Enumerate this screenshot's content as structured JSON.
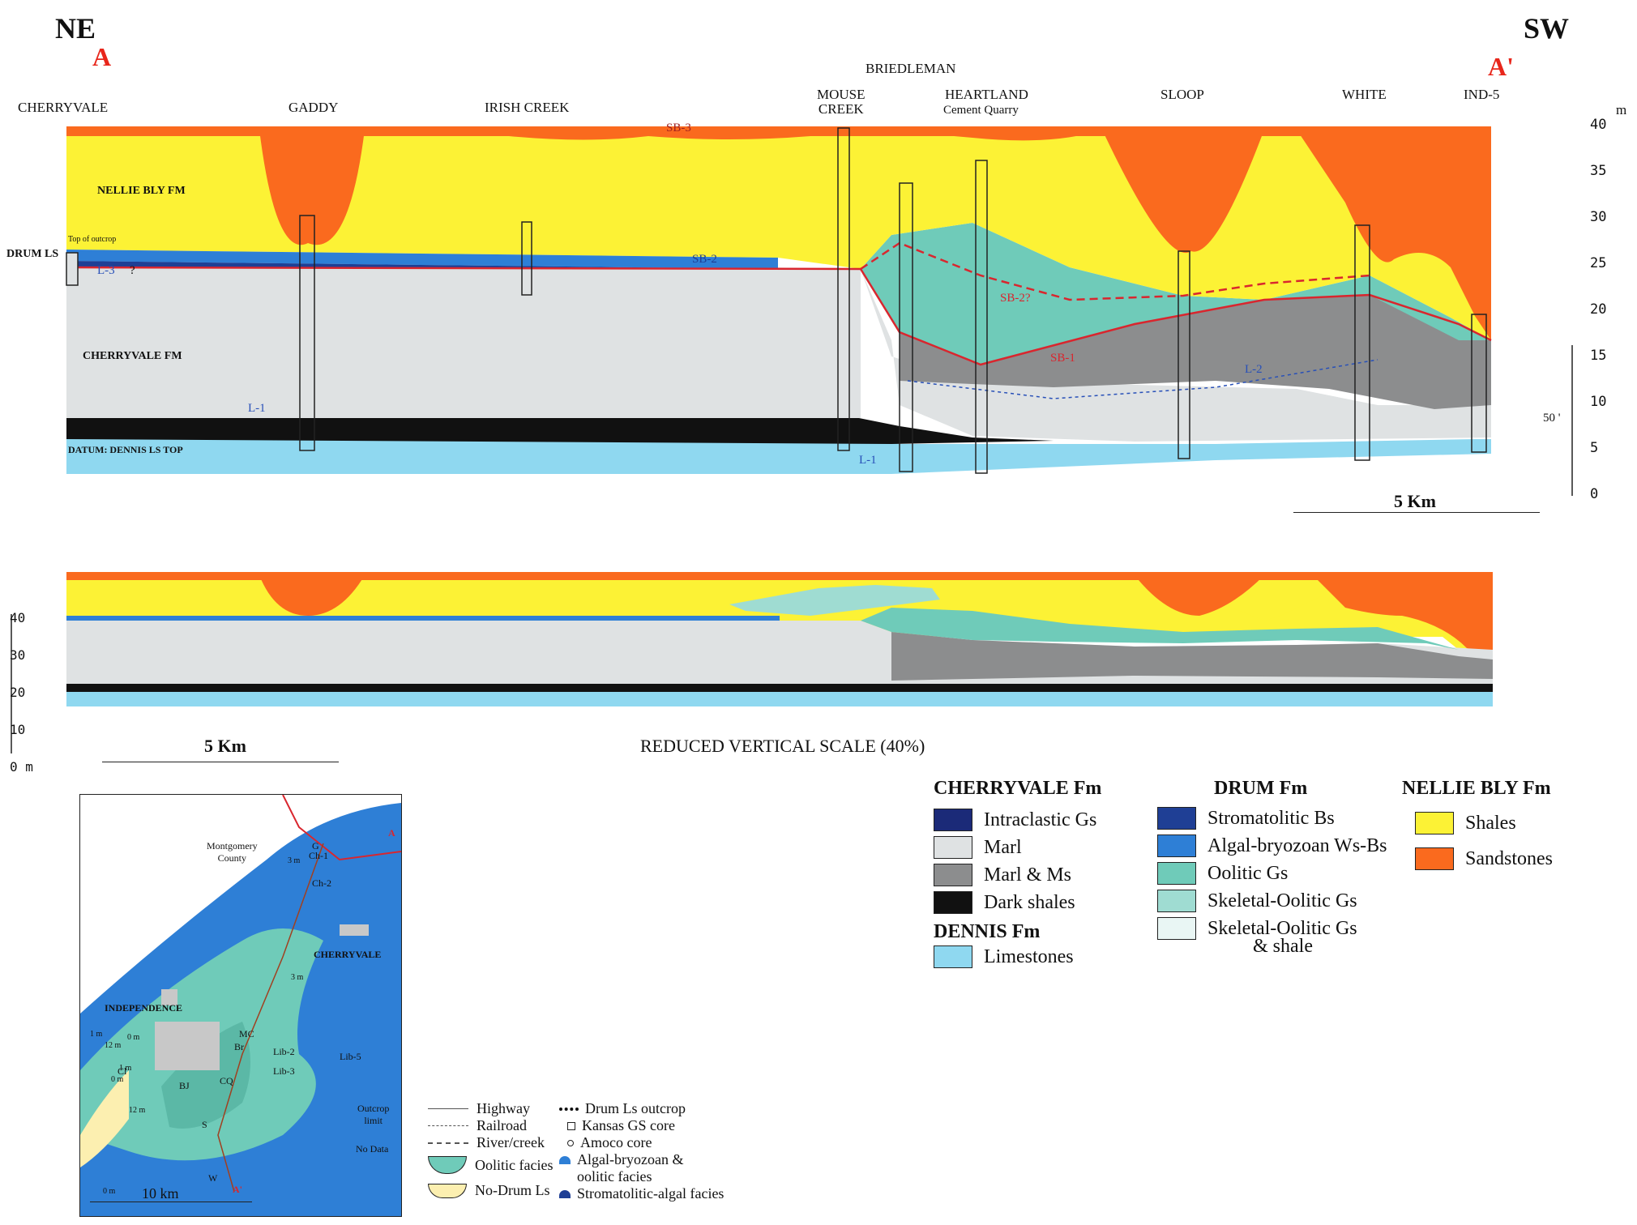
{
  "colors": {
    "sandstone": "#fa6a1e",
    "shale": "#fcf235",
    "marl": "#dfe2e3",
    "marl_ms": "#8c8d8e",
    "dark_shale": "#111111",
    "limestone": "#8fd8f0",
    "oolitic": "#6fcbb9",
    "skeletal_oolitic": "#9fdcd2",
    "skeletal_shale": "#e9f6f4",
    "algal": "#2e7fd6",
    "stromatolitic": "#1f3f95",
    "intraclastic": "#1b2a78",
    "sb_line": "#d9262e",
    "datum_line": "#2850b8"
  },
  "header": {
    "ne": "NE",
    "a": "A",
    "sw": "SW",
    "a_prime": "A'"
  },
  "wells": {
    "cherryvale": "CHERRYVALE",
    "gaddy": "GADDY",
    "irish_creek": "IRISH CREEK",
    "briedleman": "BRIEDLEMAN",
    "mouse_creek": "MOUSE\nCREEK",
    "heartland": "HEARTLAND",
    "heartland_sub": "Cement Quarry",
    "sloop": "SLOOP",
    "white": "WHITE",
    "ind5": "IND-5"
  },
  "section_labels": {
    "nellie_bly": "NELLIE BLY  FM",
    "drum_ls": "DRUM  LS",
    "top_outcrop": "Top of outcrop",
    "cherryvale_fm": "CHERRYVALE  FM",
    "datum": "DATUM: DENNIS LS TOP",
    "sb3": "SB-3",
    "sb2": "SB-2",
    "sb2q": "SB-2?",
    "sb1": "SB-1",
    "l1": "L-1",
    "l1b": "L-1",
    "l2": "L-2",
    "l3": "L-3",
    "q": "?",
    "fifty_ft": "50 '"
  },
  "scale": {
    "unit_m": "m",
    "ticks": [
      "40",
      "35",
      "30",
      "25",
      "20",
      "15",
      "10",
      "5",
      "0"
    ],
    "km": "5 Km",
    "reduced_ticks": [
      "40",
      "30",
      "20",
      "10",
      "0 m"
    ],
    "reduced_km": "5 Km",
    "reduced_caption": "REDUCED VERTICAL SCALE (40%)"
  },
  "legend": {
    "cherryvale": {
      "title": "CHERRYVALE Fm",
      "items": [
        "Intraclastic Gs",
        "Marl",
        "Marl & Ms",
        "Dark shales"
      ]
    },
    "dennis": {
      "title": "DENNIS Fm",
      "items": [
        "Limestones"
      ]
    },
    "drum": {
      "title": "DRUM Fm",
      "items": [
        "Stromatolitic Bs",
        "Algal-bryozoan Ws-Bs",
        "Oolitic Gs",
        "Skeletal-Oolitic Gs",
        "Skeletal-Oolitic Gs",
        "& shale"
      ]
    },
    "nellie": {
      "title": "NELLIE BLY Fm",
      "items": [
        "Shales",
        "Sandstones"
      ]
    }
  },
  "map": {
    "montgomery": "Montgomery",
    "county": "County",
    "cherryvale_town": "CHERRYVALE",
    "independence": "INDEPENDENCE",
    "outcrop": "Outcrop",
    "limit": "limit",
    "no_data": "No Data",
    "scale": "10 km",
    "points": [
      "G",
      "Ch-1",
      "Ch-2",
      "MC",
      "Br",
      "CQ",
      "BJ",
      "S",
      "W",
      "Cl",
      "Lib-2",
      "Lib-3",
      "Lib-5",
      "A",
      "A'"
    ],
    "contours": [
      "1 m",
      "3 m",
      "3 m",
      "0 m",
      "12 m",
      "12 m",
      "0 m",
      "0 m",
      "1 m"
    ]
  },
  "map_legend": {
    "highway": "Highway",
    "railroad": "Railroad",
    "river": "River/creek",
    "oolitic": "Oolitic facies",
    "no_drum": "No-Drum Ls",
    "drum_outcrop": "Drum Ls outcrop",
    "kansas_core": "Kansas GS core",
    "amoco_core": "Amoco core",
    "algal1": "Algal-bryozoan &",
    "algal2": "oolitic facies",
    "strom": "Stromatolitic-algal facies"
  }
}
